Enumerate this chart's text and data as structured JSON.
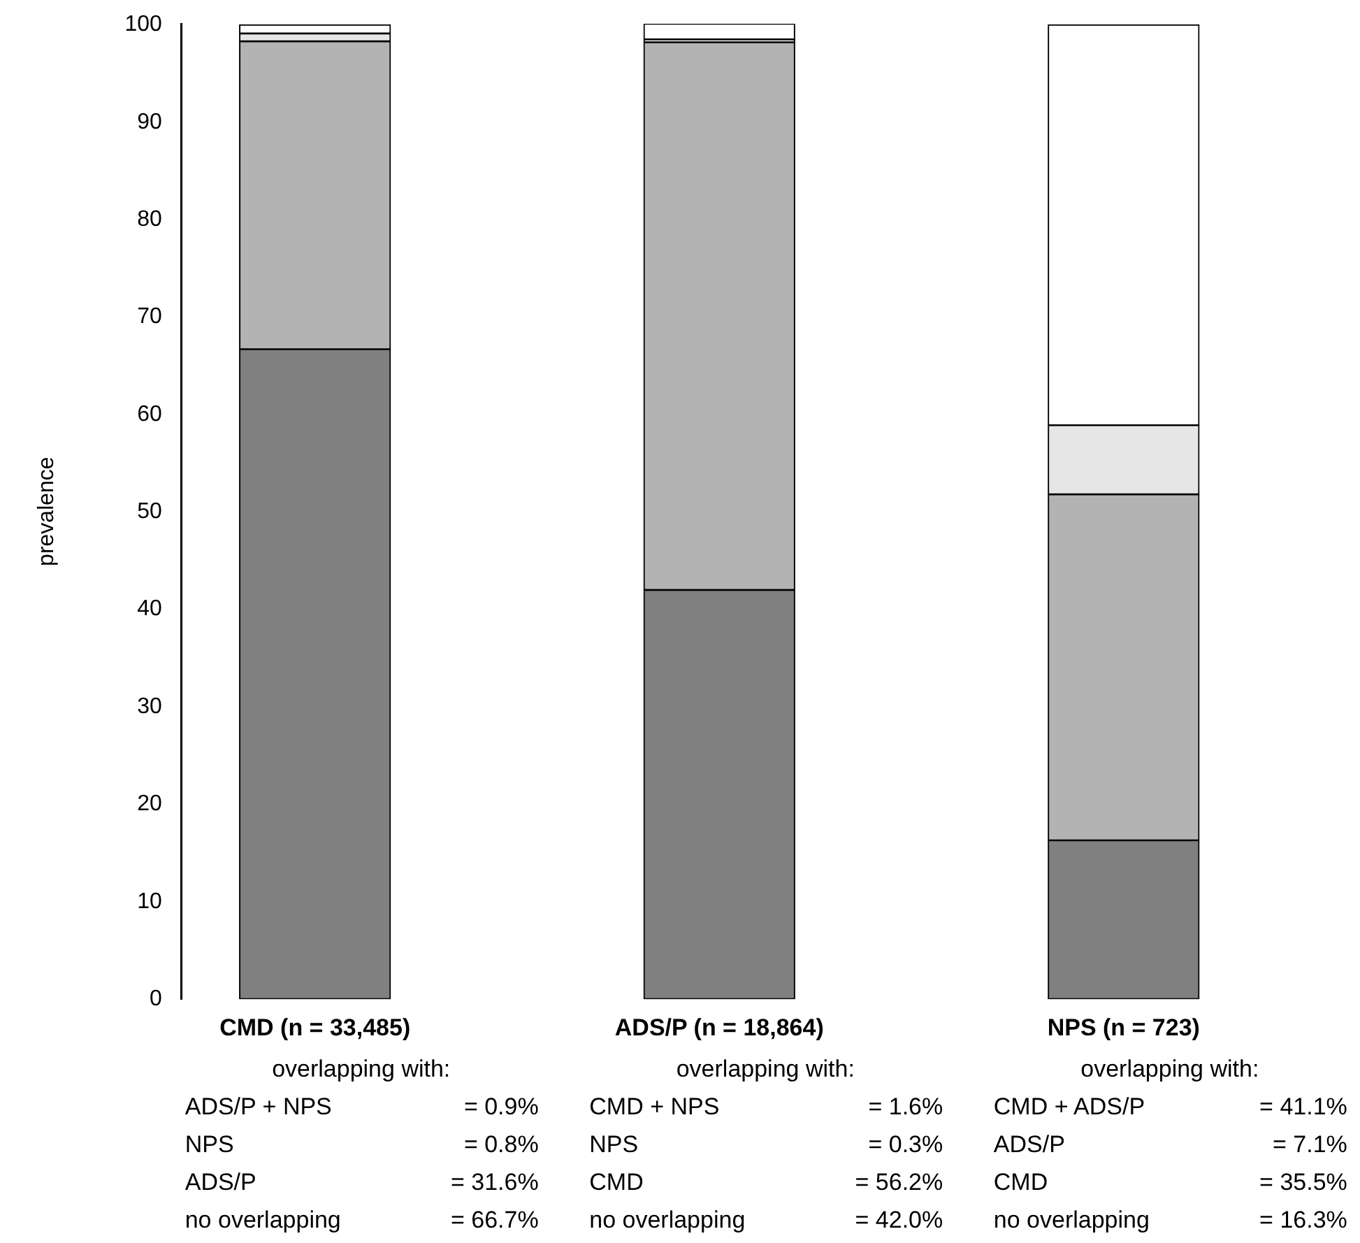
{
  "chart_data": {
    "type": "bar",
    "stacked": true,
    "ylabel": "prevalence",
    "categories": [
      "CMD (n = 33,485)",
      "ADS/P (n = 18,864)",
      "NPS (n = 723)"
    ],
    "series": [
      {
        "color": "#808080",
        "values": [
          66.7,
          42.0,
          16.3
        ],
        "value_labels": [
          "= 66.7%",
          "= 42.0%",
          "= 16.3%"
        ]
      },
      {
        "color": "#b3b3b3",
        "values": [
          31.6,
          56.2,
          35.5
        ],
        "value_labels": [
          "= 31.6%",
          "= 56.2%",
          "= 35.5%"
        ]
      },
      {
        "color": "#e6e6e6",
        "values": [
          0.8,
          0.3,
          7.1
        ],
        "value_labels": [
          "= 0.8%",
          "= 0.3%",
          "= 7.1%"
        ]
      },
      {
        "color": "#ffffff",
        "values": [
          0.9,
          1.6,
          41.1
        ],
        "value_labels": [
          "= 0.9%",
          "= 1.6%",
          "= 41.1%"
        ]
      }
    ],
    "ylim": [
      0,
      100.1
    ],
    "yticks": [
      0,
      10,
      20,
      30,
      40,
      50,
      60,
      70,
      80,
      90,
      100
    ],
    "grid": false,
    "legend": false,
    "annotations": [
      "overlapping with:",
      "ADS/P + NPS",
      "NPS",
      "ADS/P",
      "no overlapping",
      "overlapping with:",
      "CMD + NPS",
      "NPS",
      "CMD",
      "no overlapping",
      "overlapping with:",
      "CMD + ADS/P",
      "ADS/P",
      "CMD",
      "no overlapping"
    ]
  }
}
